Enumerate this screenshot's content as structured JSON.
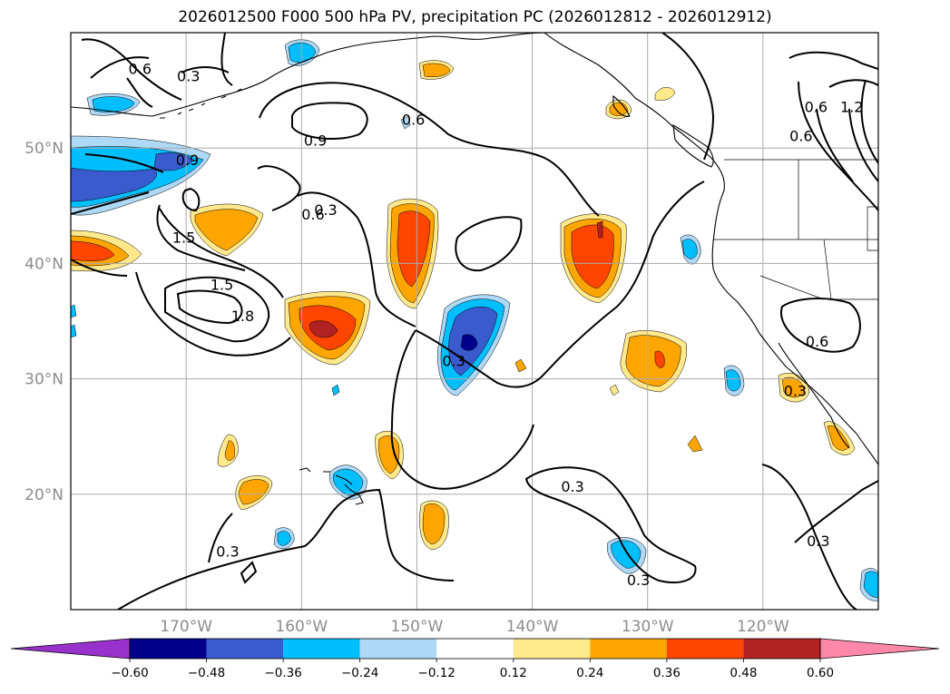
{
  "title": "2026012500 F000 500 hPa PV, precipitation PC (2026012812 - 2026012912)",
  "map": {
    "extent": {
      "lon_min": -180,
      "lon_max": -110,
      "lat_min": 10,
      "lat_max": 60
    },
    "gridlines": true,
    "lat_ticks": [
      {
        "value": 50,
        "label": "50°N"
      },
      {
        "value": 40,
        "label": "40°N"
      },
      {
        "value": 30,
        "label": "30°N"
      },
      {
        "value": 20,
        "label": "20°N"
      }
    ],
    "lon_ticks": [
      {
        "value": -170,
        "label": "170°W"
      },
      {
        "value": -160,
        "label": "160°W"
      },
      {
        "value": -150,
        "label": "150°W"
      },
      {
        "value": -140,
        "label": "140°W"
      },
      {
        "value": -130,
        "label": "130°W"
      },
      {
        "value": -120,
        "label": "120°W"
      }
    ],
    "pv_contours": {
      "color": "#000000",
      "labels": [
        {
          "text": "0.6",
          "lon": -174,
          "lat": 56.8
        },
        {
          "text": "0.3",
          "lon": -169.8,
          "lat": 56.2
        },
        {
          "text": "0.9",
          "lon": -169.9,
          "lat": 48.9
        },
        {
          "text": "0.3",
          "lon": -157.9,
          "lat": 44.6
        },
        {
          "text": "0.6",
          "lon": -159,
          "lat": 44.2
        },
        {
          "text": "0.9",
          "lon": -158.8,
          "lat": 50.6
        },
        {
          "text": "0.6",
          "lon": -150.3,
          "lat": 52.4
        },
        {
          "text": "1.5",
          "lon": -170.2,
          "lat": 42.2
        },
        {
          "text": "1.5",
          "lon": -166.9,
          "lat": 38.1
        },
        {
          "text": "1.8",
          "lon": -165.1,
          "lat": 35.4
        },
        {
          "text": "0.3",
          "lon": -146.8,
          "lat": 31.5
        },
        {
          "text": "0.3",
          "lon": -136.5,
          "lat": 20.6
        },
        {
          "text": "0.3",
          "lon": -130.8,
          "lat": 12.5
        },
        {
          "text": "0.3",
          "lon": -166.4,
          "lat": 15
        },
        {
          "text": "0.3",
          "lon": -115.2,
          "lat": 15.9
        },
        {
          "text": "0.3",
          "lon": -117.2,
          "lat": 28.9
        },
        {
          "text": "0.6",
          "lon": -115.3,
          "lat": 33.2
        },
        {
          "text": "0.6",
          "lon": -115.4,
          "lat": 53.5
        },
        {
          "text": "0.6",
          "lon": -116.7,
          "lat": 51
        },
        {
          "text": "1.2",
          "lon": -112.3,
          "lat": 53.5
        }
      ]
    },
    "precip_pc": {
      "colors": {
        "lt_neg060": "#9932cc",
        "neg060_neg048": "#00008b",
        "neg048_neg036": "#3a5bcd",
        "neg036_neg024": "#00bfff",
        "neg024_neg012": "#add8f6",
        "neg012_012": "#ffffff",
        "p012_024": "#ffe98c",
        "p024_036": "#ffa500",
        "p036_048": "#ff4500",
        "p048_060": "#b22222",
        "gt_060": "#ff88aa"
      }
    }
  },
  "colorbar": {
    "extend": "both",
    "boundaries": [
      -0.6,
      -0.48,
      -0.36,
      -0.24,
      -0.12,
      0.12,
      0.24,
      0.36,
      0.48,
      0.6
    ],
    "tick_labels": [
      "−0.60",
      "−0.48",
      "−0.36",
      "−0.24",
      "−0.12",
      "0.12",
      "0.24",
      "0.36",
      "0.48",
      "0.60"
    ],
    "colors": [
      "#9932cc",
      "#00008b",
      "#3a5bcd",
      "#00bfff",
      "#add8f6",
      "#ffffff",
      "#ffe98c",
      "#ffa500",
      "#ff4500",
      "#b22222",
      "#ff88aa"
    ]
  }
}
